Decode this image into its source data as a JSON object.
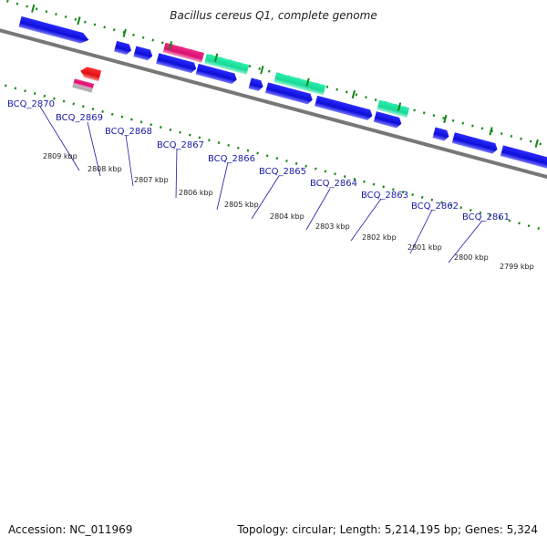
{
  "title": "Bacillus cereus Q1, complete genome",
  "footer": {
    "accession": "Accession: NC_011969",
    "summary": "Topology: circular; Length: 5,214,195 bp; Genes: 5,324"
  },
  "colors": {
    "cds_blue": "#1010e0",
    "rrna_green": "#22e0a0",
    "trna_pink": "#e0107a",
    "red": "#ee1111",
    "gc_green": "#118811",
    "backbone": "#777777",
    "label": "#1a1aa6"
  },
  "locus_labels": [
    "BCQ_2870",
    "BCQ_2869",
    "BCQ_2868",
    "BCQ_2867",
    "BCQ_2866",
    "BCQ_2865",
    "BCQ_2864",
    "BCQ_2863",
    "BCQ_2862",
    "BCQ_2861"
  ],
  "scale_labels": [
    "2809 kbp",
    "2808 kbp",
    "2807 kbp",
    "2806 kbp",
    "2805 kbp",
    "2804 kbp",
    "2803 kbp",
    "2802 kbp",
    "2801 kbp",
    "2800 kbp",
    "2799 kbp"
  ]
}
